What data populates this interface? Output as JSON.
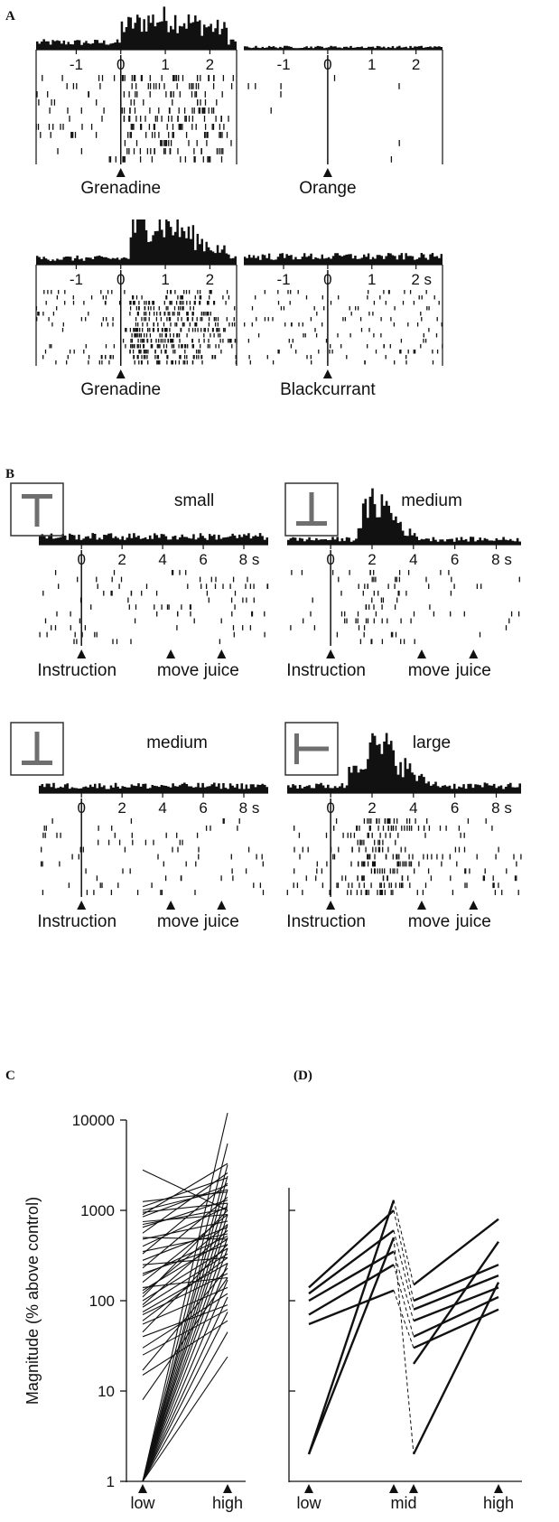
{
  "panel_labels": {
    "A": "A",
    "B": "B",
    "C": "C",
    "D": "(D)"
  },
  "panel_A": {
    "x_ticks": [
      "-1",
      "0",
      "1",
      "2"
    ],
    "x_unit": "s",
    "plots": [
      {
        "event_label": "Grenadine",
        "histogram_level": "medium-high",
        "raster_density": "dense after 0 s"
      },
      {
        "event_label": "Orange",
        "histogram_level": "flat",
        "raster_density": "sparse"
      },
      {
        "event_label": "Grenadine",
        "histogram_level": "high",
        "raster_density": "dense after 0 s"
      },
      {
        "event_label": "Blackcurrant",
        "histogram_level": "low",
        "raster_density": "moderate"
      }
    ]
  },
  "panel_B": {
    "x_ticks": [
      "0",
      "2",
      "4",
      "6",
      "8"
    ],
    "x_unit": "s",
    "events": [
      "Instruction",
      "move",
      "juice"
    ],
    "plots": [
      {
        "label": "small",
        "icon": "T-stimulus-icon",
        "histogram_level": "low"
      },
      {
        "label": "medium",
        "icon": "inverted-T-stimulus-icon",
        "histogram_level": "peak ~2 s"
      },
      {
        "label": "medium",
        "icon": "inverted-T-stimulus-icon",
        "histogram_level": "low"
      },
      {
        "label": "large",
        "icon": "left-T-stimulus-icon",
        "histogram_level": "high 1.5-5 s"
      }
    ]
  },
  "chart_data": [
    {
      "panel": "C",
      "type": "line",
      "y_scale": "log",
      "ylim": [
        1,
        10000
      ],
      "y_ticks": [
        "1",
        "10",
        "100",
        "1000",
        "10000"
      ],
      "ylabel": "Magnitude (% above control)",
      "categories": [
        "low",
        "high"
      ],
      "series": [
        {
          "values": [
            1,
            12000
          ]
        },
        {
          "values": [
            1,
            5500
          ]
        },
        {
          "values": [
            1,
            3200
          ]
        },
        {
          "values": [
            1,
            2400
          ]
        },
        {
          "values": [
            1,
            1700
          ]
        },
        {
          "values": [
            1,
            1200
          ]
        },
        {
          "values": [
            1,
            900
          ]
        },
        {
          "values": [
            1,
            700
          ]
        },
        {
          "values": [
            1,
            500
          ]
        },
        {
          "values": [
            1,
            380
          ]
        },
        {
          "values": [
            1,
            260
          ]
        },
        {
          "values": [
            1,
            170
          ]
        },
        {
          "values": [
            1,
            110
          ]
        },
        {
          "values": [
            1,
            75
          ]
        },
        {
          "values": [
            1,
            45
          ]
        },
        {
          "values": [
            1,
            24
          ]
        },
        {
          "values": [
            8,
            180
          ]
        },
        {
          "values": [
            17,
            230
          ]
        },
        {
          "values": [
            30,
            120
          ]
        },
        {
          "values": [
            45,
            420
          ]
        },
        {
          "values": [
            60,
            300
          ]
        },
        {
          "values": [
            75,
            260
          ]
        },
        {
          "values": [
            90,
            600
          ]
        },
        {
          "values": [
            110,
            1000
          ]
        },
        {
          "values": [
            130,
            480
          ]
        },
        {
          "values": [
            160,
            900
          ]
        },
        {
          "values": [
            190,
            520
          ]
        },
        {
          "values": [
            230,
            1400
          ]
        },
        {
          "values": [
            280,
            650
          ]
        },
        {
          "values": [
            330,
            2000
          ]
        },
        {
          "values": [
            400,
            1100
          ]
        },
        {
          "values": [
            480,
            760
          ]
        },
        {
          "values": [
            560,
            2600
          ]
        },
        {
          "values": [
            650,
            1300
          ]
        },
        {
          "values": [
            750,
            900
          ]
        },
        {
          "values": [
            850,
            1900
          ]
        },
        {
          "values": [
            950,
            1200
          ]
        },
        {
          "values": [
            1100,
            2300
          ]
        },
        {
          "values": [
            1250,
            1600
          ]
        },
        {
          "values": [
            2800,
            1000
          ]
        },
        {
          "values": [
            40,
            90
          ]
        },
        {
          "values": [
            55,
            140
          ]
        },
        {
          "values": [
            70,
            200
          ]
        },
        {
          "values": [
            85,
            330
          ]
        },
        {
          "values": [
            100,
            380
          ]
        },
        {
          "values": [
            120,
            700
          ]
        },
        {
          "values": [
            140,
            180
          ]
        },
        {
          "values": [
            200,
            420
          ]
        },
        {
          "values": [
            250,
            300
          ]
        },
        {
          "values": [
            350,
            550
          ]
        },
        {
          "values": [
            500,
            480
          ]
        },
        {
          "values": [
            700,
            1050
          ]
        },
        {
          "values": [
            900,
            3300
          ]
        },
        {
          "values": [
            1000,
            1700
          ]
        },
        {
          "values": [
            15,
            60
          ]
        },
        {
          "values": [
            25,
            80
          ]
        }
      ]
    },
    {
      "panel": "D",
      "type": "line",
      "y_scale": "log",
      "ylim": [
        1,
        10000
      ],
      "categories": [
        "low",
        "mid",
        "high"
      ],
      "solid_series": [
        {
          "x": [
            "low",
            "mid"
          ],
          "values": [
            2,
            1300
          ]
        },
        {
          "x": [
            "low",
            "mid"
          ],
          "values": [
            2,
            500
          ]
        },
        {
          "x": [
            "low",
            "mid"
          ],
          "values": [
            140,
            1000
          ]
        },
        {
          "x": [
            "low",
            "mid"
          ],
          "values": [
            120,
            600
          ]
        },
        {
          "x": [
            "low",
            "mid"
          ],
          "values": [
            100,
            350
          ]
        },
        {
          "x": [
            "low",
            "mid"
          ],
          "values": [
            70,
            250
          ]
        },
        {
          "x": [
            "low",
            "mid"
          ],
          "values": [
            55,
            130
          ]
        },
        {
          "x": [
            "mid",
            "high"
          ],
          "values": [
            150,
            800
          ]
        },
        {
          "x": [
            "mid",
            "high"
          ],
          "values": [
            100,
            250
          ]
        },
        {
          "x": [
            "mid",
            "high"
          ],
          "values": [
            80,
            190
          ]
        },
        {
          "x": [
            "mid",
            "high"
          ],
          "values": [
            60,
            140
          ]
        },
        {
          "x": [
            "mid",
            "high"
          ],
          "values": [
            40,
            110
          ]
        },
        {
          "x": [
            "mid",
            "high"
          ],
          "values": [
            30,
            80
          ]
        },
        {
          "x": [
            "mid",
            "high"
          ],
          "values": [
            20,
            450
          ]
        },
        {
          "x": [
            "mid",
            "high"
          ],
          "values": [
            2,
            160
          ]
        }
      ],
      "dashed_series": [
        {
          "values": [
            1300,
            150
          ]
        },
        {
          "values": [
            1000,
            100
          ]
        },
        {
          "values": [
            600,
            80
          ]
        },
        {
          "values": [
            500,
            2
          ]
        },
        {
          "values": [
            350,
            60
          ]
        },
        {
          "values": [
            250,
            40
          ]
        },
        {
          "values": [
            130,
            30
          ]
        }
      ]
    }
  ]
}
